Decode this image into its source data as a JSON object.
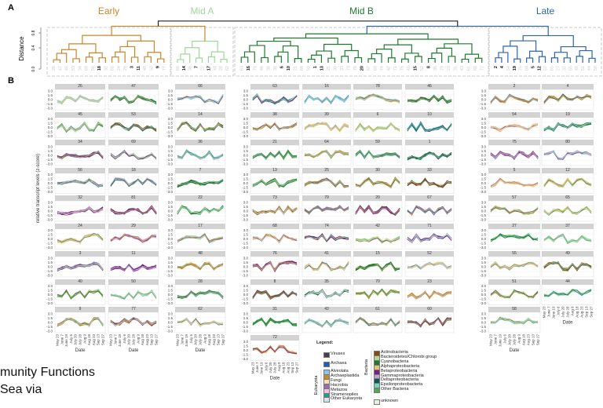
{
  "panel_labels": {
    "a": "A",
    "b": "B"
  },
  "dendrogram": {
    "ylabel": "Distance",
    "yticks": [
      "0.0",
      "0.4",
      "0.8"
    ],
    "groups": [
      {
        "name": "Early",
        "color": "#c8862a",
        "leaves": [
          "26",
          "47",
          "45",
          "53",
          "34",
          "69",
          "56",
          "18",
          "32",
          "81",
          "24",
          "29",
          "3",
          "11",
          "40",
          "50",
          "9",
          "77"
        ],
        "bold": [
          "18",
          "3",
          "11",
          "9"
        ]
      },
      {
        "name": "Mid A",
        "color": "#9ed898",
        "leaves": [
          "66",
          "14",
          "36",
          "7",
          "22",
          "17",
          "48",
          "28",
          "62"
        ],
        "bold": [
          "14",
          "7",
          "17"
        ]
      },
      {
        "name": "Mid B",
        "color": "#1f7a2e",
        "leaves": [
          "63",
          "16",
          "78",
          "46",
          "38",
          "39",
          "6",
          "10",
          "21",
          "64",
          "59",
          "1",
          "13",
          "25",
          "30",
          "33",
          "73",
          "79",
          "20",
          "67",
          "68",
          "74",
          "42",
          "71",
          "76",
          "41",
          "15",
          "52",
          "8",
          "35",
          "70",
          "23",
          "31",
          "43",
          "61",
          "60",
          "72"
        ],
        "bold": [
          "16",
          "6",
          "10",
          "1",
          "13",
          "20",
          "15",
          "8"
        ]
      },
      {
        "name": "Late",
        "color": "#2b63b0",
        "leaves": [
          "2",
          "4",
          "54",
          "19",
          "75",
          "80",
          "5",
          "12",
          "57",
          "65",
          "27",
          "37",
          "55",
          "49",
          "51",
          "44",
          "58"
        ],
        "bold": [
          "2",
          "4",
          "19",
          "5",
          "12"
        ]
      }
    ]
  },
  "chart_data": {
    "type": "line",
    "ylabel": "relative transcript levels (z-score)",
    "xlabel": "Date",
    "yticks": [
      "3.0",
      "1.5",
      "0.0",
      "-1.5",
      "-3.0"
    ],
    "ylim": [
      -3.0,
      3.0
    ],
    "xticks": [
      "May 23",
      "June 7",
      "June 19",
      "July 6",
      "July 20",
      "July 28",
      "Aug 9",
      "Aug 18",
      "Aug 23",
      "Sep 13",
      "Sep 27"
    ],
    "grid": true,
    "groups": [
      {
        "name": "Early",
        "columns": [
          [
            {
              "id": "26",
              "color": "#a8dc98"
            },
            {
              "id": "45",
              "color": "#4caa4c"
            },
            {
              "id": "34",
              "color": "#7a1e8a"
            },
            {
              "id": "56",
              "color": "#9a6bb5"
            },
            {
              "id": "32",
              "color": "#7a1e8a"
            },
            {
              "id": "24",
              "color": "#e8c070"
            },
            {
              "id": "3",
              "color": "#7a1e8a"
            },
            {
              "id": "40",
              "color": "#a8dc98"
            },
            {
              "id": "9",
              "color": "#c98a2e"
            }
          ],
          [
            {
              "id": "47",
              "color": "#1e7a2a"
            },
            {
              "id": "53",
              "color": "#8a4a0a"
            },
            {
              "id": "69",
              "color": "#a8dc98"
            },
            {
              "id": "18",
              "color": "#c8a0d0"
            },
            {
              "id": "81",
              "color": "#7a1e8a"
            },
            {
              "id": "29",
              "color": "#c8a0d0"
            },
            {
              "id": "11",
              "color": "#7a1e8a"
            },
            {
              "id": "50",
              "color": "#a8dc98"
            },
            {
              "id": "77",
              "color": "#8a4a0a"
            }
          ]
        ]
      },
      {
        "name": "Mid A",
        "columns": [
          [
            {
              "id": "66",
              "color": "#8ec5e6"
            },
            {
              "id": "14",
              "color": "#1e7a2a"
            },
            {
              "id": "36",
              "color": "#8ec5e6"
            },
            {
              "id": "7",
              "color": "#1e7a2a"
            },
            {
              "id": "22",
              "color": "#1e7a2a"
            },
            {
              "id": "17",
              "color": "#a8dc98"
            },
            {
              "id": "48",
              "color": "#c98a2e"
            },
            {
              "id": "28",
              "color": "#1e7a2a"
            },
            {
              "id": "62",
              "color": "#e8c070"
            }
          ]
        ]
      },
      {
        "name": "Mid B",
        "columns": [
          [
            {
              "id": "63",
              "color": "#2a9a8a"
            },
            {
              "id": "38",
              "color": "#e8c070"
            },
            {
              "id": "21",
              "color": "#4caa4c"
            },
            {
              "id": "13",
              "color": "#1e7a2a"
            },
            {
              "id": "73",
              "color": "#8a4a0a"
            },
            {
              "id": "68",
              "color": "#e8c070"
            },
            {
              "id": "76",
              "color": "#7a1e8a"
            },
            {
              "id": "8",
              "color": "#8a4a0a"
            },
            {
              "id": "31",
              "color": "#4caa4c"
            },
            {
              "id": "72",
              "color": "#e8c070"
            }
          ],
          [
            {
              "id": "16",
              "color": "#8ec5e6"
            },
            {
              "id": "39",
              "color": "#e8c070"
            },
            {
              "id": "64",
              "color": "#c98a2e"
            },
            {
              "id": "25",
              "color": "#c98a2e"
            },
            {
              "id": "79",
              "color": "#9a6bb5"
            },
            {
              "id": "74",
              "color": "#7a1e8a"
            },
            {
              "id": "41",
              "color": "#e8c070"
            },
            {
              "id": "35",
              "color": "#1e7a2a"
            },
            {
              "id": "43",
              "color": "#8ec5e6"
            }
          ],
          [
            {
              "id": "78",
              "color": "#a8dc98"
            },
            {
              "id": "6",
              "color": "#a8dc98"
            },
            {
              "id": "59",
              "color": "#4caa4c"
            },
            {
              "id": "30",
              "color": "#c98a2e"
            },
            {
              "id": "20",
              "color": "#7a1e8a"
            },
            {
              "id": "42",
              "color": "#a8dc98"
            },
            {
              "id": "15",
              "color": "#1e7a2a"
            },
            {
              "id": "70",
              "color": "#e8c070"
            },
            {
              "id": "61",
              "color": "#e8c070"
            }
          ],
          [
            {
              "id": "46",
              "color": "#1e7a2a"
            },
            {
              "id": "10",
              "color": "#2a9a8a"
            },
            {
              "id": "1",
              "color": "#1e7a2a"
            },
            {
              "id": "33",
              "color": "#8a4a0a"
            },
            {
              "id": "67",
              "color": "#9a6bb5"
            },
            {
              "id": "71",
              "color": "#7a1e8a"
            },
            {
              "id": "52",
              "color": "#e8c070"
            },
            {
              "id": "23",
              "color": "#c98a2e"
            },
            {
              "id": "60",
              "color": "#8a4a0a"
            }
          ]
        ]
      },
      {
        "name": "Late",
        "columns": [
          [
            {
              "id": "2",
              "color": "#c98a2e"
            },
            {
              "id": "54",
              "color": "#e8c070"
            },
            {
              "id": "75",
              "color": "#7a1e8a"
            },
            {
              "id": "5",
              "color": "#e8c070"
            },
            {
              "id": "57",
              "color": "#a8dc98"
            },
            {
              "id": "27",
              "color": "#a8dc98"
            },
            {
              "id": "55",
              "color": "#e8c070"
            },
            {
              "id": "51",
              "color": "#a8dc98"
            },
            {
              "id": "58",
              "color": "#a8dc98"
            }
          ],
          [
            {
              "id": "4",
              "color": "#c98a2e"
            },
            {
              "id": "19",
              "color": "#1e7a2a"
            },
            {
              "id": "80",
              "color": "#c8a0d0"
            },
            {
              "id": "12",
              "color": "#e8c070"
            },
            {
              "id": "65",
              "color": "#e8c070"
            },
            {
              "id": "37",
              "color": "#a8dc98"
            },
            {
              "id": "49",
              "color": "#8a4a0a"
            },
            {
              "id": "44",
              "color": "#a8dc98"
            }
          ]
        ]
      }
    ]
  },
  "legend": {
    "title": "Legend:",
    "viruses": {
      "label": "Viruses",
      "color": "#444444"
    },
    "archaea": {
      "label": "Archaea",
      "color": "#1f5fb0"
    },
    "eukaryota_label": "Eukaryota",
    "eukaryota": [
      {
        "label": "Alveolata",
        "color": "#8ec5e6"
      },
      {
        "label": "Archaeplastida",
        "color": "#c98a2e"
      },
      {
        "label": "Fungi",
        "color": "#f3e3b0"
      },
      {
        "label": "Hacrobia",
        "color": "#9a6bb5"
      },
      {
        "label": "Metazoa",
        "color": "#e8c4e0"
      },
      {
        "label": "Stramenopiles",
        "color": "#2a9a8a"
      },
      {
        "label": "Other Eukaryota",
        "color": "#cfe9ec"
      }
    ],
    "bacteria_label": "Bacteria",
    "bacteria": [
      {
        "label": "Actinobacteria",
        "color": "#8a4a0a"
      },
      {
        "label": "Bacteroidetes/Chlorobi group",
        "color": "#a8dc98"
      },
      {
        "label": "Cyanobacteria",
        "color": "#1e7a2a"
      },
      {
        "label": "Alphaproteobacteria",
        "color": "#e8c070"
      },
      {
        "label": "Betaproteobacteria",
        "color": "#7a1e8a"
      },
      {
        "label": "Gammaproteobacteria",
        "color": "#c8a0d0"
      },
      {
        "label": "Deltaproteobacteria",
        "color": "#0a5a50"
      },
      {
        "label": "Epsilonproteobacteria",
        "color": "#7ad0c8"
      },
      {
        "label": "Other Bacteria",
        "color": "#4caa4c"
      }
    ],
    "unknown": {
      "label": "unknown",
      "color": "#e2f2d6"
    }
  },
  "slide_text": {
    "line1": "munity Functions",
    "line2": "Sea via"
  }
}
